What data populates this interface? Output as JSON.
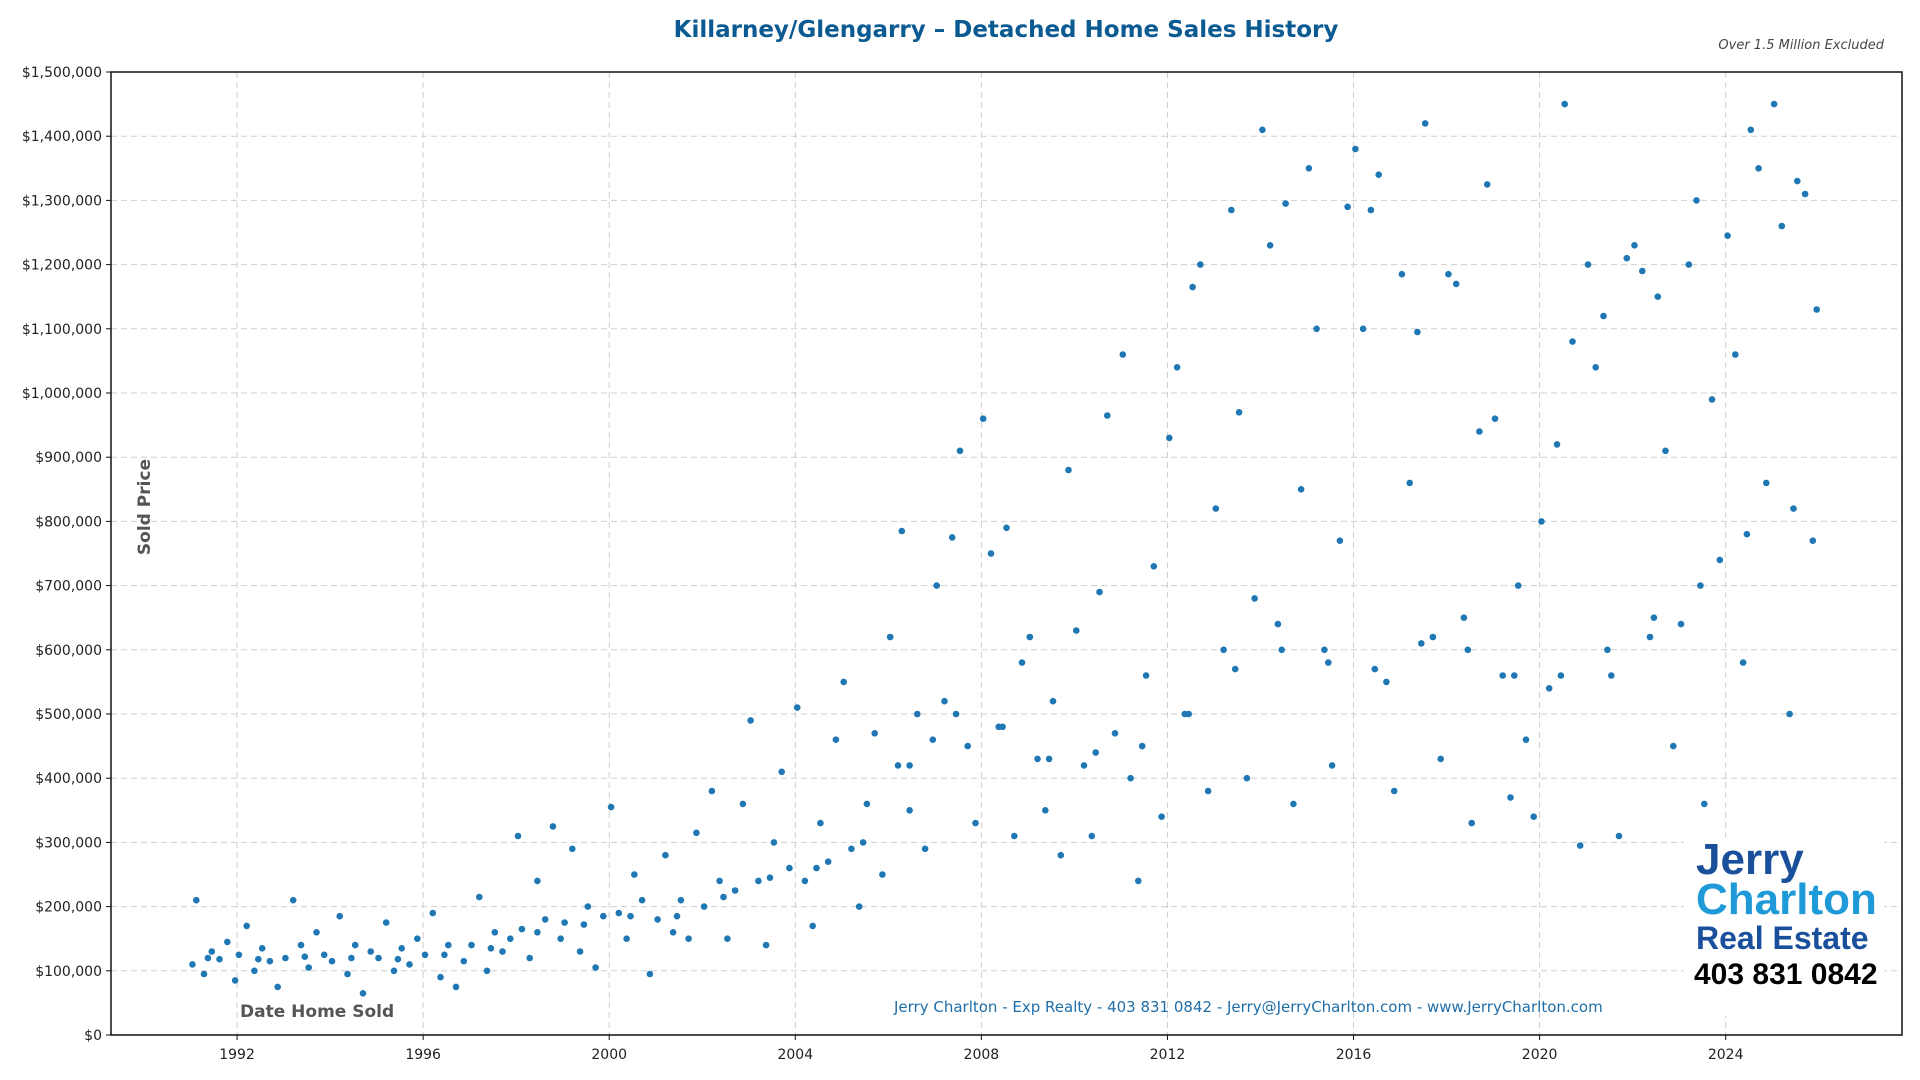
{
  "chart_data": {
    "type": "scatter",
    "title": "Killarney/Glengarry – Detached Home Sales History",
    "note": "Over 1.5 Million Excluded",
    "xlabel": "Date Home Sold",
    "ylabel": "Sold Price",
    "xlim": [
      "1989-04",
      "2027-10"
    ],
    "ylim": [
      0,
      1500000
    ],
    "x_ticks": [
      "1992",
      "1996",
      "2000",
      "2004",
      "2008",
      "2012",
      "2016",
      "2020",
      "2024"
    ],
    "y_ticks": [
      "$0",
      "$100,000",
      "$200,000",
      "$300,000",
      "$400,000",
      "$500,000",
      "$600,000",
      "$700,000",
      "$800,000",
      "$900,000",
      "$1,000,000",
      "$1,100,000",
      "$1,200,000",
      "$1,300,000",
      "$1,400,000",
      "$1,500,000"
    ],
    "grid": true,
    "point_color": "#1f77b4",
    "points": [
      [
        "1991-01",
        110000
      ],
      [
        "1991-02",
        210000
      ],
      [
        "1991-04",
        95000
      ],
      [
        "1991-06",
        130000
      ],
      [
        "1991-08",
        118000
      ],
      [
        "1991-10",
        145000
      ],
      [
        "1991-12",
        85000
      ],
      [
        "1992-01",
        125000
      ],
      [
        "1992-03",
        170000
      ],
      [
        "1992-05",
        100000
      ],
      [
        "1992-07",
        135000
      ],
      [
        "1992-09",
        115000
      ],
      [
        "1992-11",
        75000
      ],
      [
        "1993-01",
        120000
      ],
      [
        "1993-03",
        210000
      ],
      [
        "1993-05",
        140000
      ],
      [
        "1993-07",
        105000
      ],
      [
        "1993-09",
        160000
      ],
      [
        "1993-11",
        125000
      ],
      [
        "1994-01",
        115000
      ],
      [
        "1994-03",
        185000
      ],
      [
        "1994-05",
        95000
      ],
      [
        "1994-07",
        140000
      ],
      [
        "1994-09",
        65000
      ],
      [
        "1994-11",
        130000
      ],
      [
        "1995-01",
        120000
      ],
      [
        "1995-03",
        175000
      ],
      [
        "1995-05",
        100000
      ],
      [
        "1995-07",
        135000
      ],
      [
        "1995-09",
        110000
      ],
      [
        "1995-11",
        150000
      ],
      [
        "1996-01",
        125000
      ],
      [
        "1996-03",
        190000
      ],
      [
        "1996-05",
        90000
      ],
      [
        "1996-07",
        140000
      ],
      [
        "1996-09",
        75000
      ],
      [
        "1996-11",
        115000
      ],
      [
        "1997-01",
        140000
      ],
      [
        "1997-03",
        215000
      ],
      [
        "1997-05",
        100000
      ],
      [
        "1997-07",
        160000
      ],
      [
        "1997-09",
        130000
      ],
      [
        "1997-11",
        150000
      ],
      [
        "1998-01",
        310000
      ],
      [
        "1998-02",
        165000
      ],
      [
        "1998-04",
        120000
      ],
      [
        "1998-06",
        240000
      ],
      [
        "1998-08",
        180000
      ],
      [
        "1998-10",
        325000
      ],
      [
        "1998-12",
        150000
      ],
      [
        "1999-01",
        175000
      ],
      [
        "1999-03",
        290000
      ],
      [
        "1999-05",
        130000
      ],
      [
        "1999-07",
        200000
      ],
      [
        "1999-09",
        105000
      ],
      [
        "1999-11",
        185000
      ],
      [
        "2000-01",
        355000
      ],
      [
        "2000-03",
        190000
      ],
      [
        "2000-05",
        150000
      ],
      [
        "2000-07",
        250000
      ],
      [
        "2000-09",
        210000
      ],
      [
        "2000-11",
        95000
      ],
      [
        "2001-01",
        180000
      ],
      [
        "2001-03",
        280000
      ],
      [
        "2001-05",
        160000
      ],
      [
        "2001-07",
        210000
      ],
      [
        "2001-09",
        150000
      ],
      [
        "2001-11",
        315000
      ],
      [
        "2002-01",
        200000
      ],
      [
        "2002-03",
        380000
      ],
      [
        "2002-05",
        240000
      ],
      [
        "2002-07",
        150000
      ],
      [
        "2002-09",
        225000
      ],
      [
        "2002-11",
        360000
      ],
      [
        "2003-01",
        490000
      ],
      [
        "2003-03",
        240000
      ],
      [
        "2003-05",
        140000
      ],
      [
        "2003-07",
        300000
      ],
      [
        "2003-09",
        410000
      ],
      [
        "2003-11",
        260000
      ],
      [
        "2004-01",
        510000
      ],
      [
        "2004-03",
        240000
      ],
      [
        "2004-05",
        170000
      ],
      [
        "2004-07",
        330000
      ],
      [
        "2004-09",
        270000
      ],
      [
        "2004-11",
        460000
      ],
      [
        "2005-01",
        550000
      ],
      [
        "2005-03",
        290000
      ],
      [
        "2005-05",
        200000
      ],
      [
        "2005-07",
        360000
      ],
      [
        "2005-09",
        470000
      ],
      [
        "2005-11",
        250000
      ],
      [
        "2006-01",
        620000
      ],
      [
        "2006-03",
        420000
      ],
      [
        "2006-04",
        785000
      ],
      [
        "2006-06",
        350000
      ],
      [
        "2006-08",
        500000
      ],
      [
        "2006-10",
        290000
      ],
      [
        "2006-12",
        460000
      ],
      [
        "2007-01",
        700000
      ],
      [
        "2007-03",
        520000
      ],
      [
        "2007-05",
        775000
      ],
      [
        "2007-07",
        910000
      ],
      [
        "2007-09",
        450000
      ],
      [
        "2007-11",
        330000
      ],
      [
        "2008-01",
        960000
      ],
      [
        "2008-03",
        750000
      ],
      [
        "2008-05",
        480000
      ],
      [
        "2008-07",
        790000
      ],
      [
        "2008-09",
        310000
      ],
      [
        "2008-11",
        580000
      ],
      [
        "2009-01",
        620000
      ],
      [
        "2009-03",
        430000
      ],
      [
        "2009-05",
        350000
      ],
      [
        "2009-07",
        520000
      ],
      [
        "2009-09",
        280000
      ],
      [
        "2009-11",
        880000
      ],
      [
        "2010-01",
        630000
      ],
      [
        "2010-03",
        420000
      ],
      [
        "2010-05",
        310000
      ],
      [
        "2010-07",
        690000
      ],
      [
        "2010-09",
        965000
      ],
      [
        "2010-11",
        470000
      ],
      [
        "2011-01",
        1060000
      ],
      [
        "2011-03",
        400000
      ],
      [
        "2011-05",
        240000
      ],
      [
        "2011-07",
        560000
      ],
      [
        "2011-09",
        730000
      ],
      [
        "2011-11",
        340000
      ],
      [
        "2012-01",
        930000
      ],
      [
        "2012-03",
        1040000
      ],
      [
        "2012-05",
        500000
      ],
      [
        "2012-07",
        1165000
      ],
      [
        "2012-09",
        1200000
      ],
      [
        "2012-11",
        380000
      ],
      [
        "2013-01",
        820000
      ],
      [
        "2013-03",
        600000
      ],
      [
        "2013-05",
        1285000
      ],
      [
        "2013-07",
        970000
      ],
      [
        "2013-09",
        400000
      ],
      [
        "2013-11",
        680000
      ],
      [
        "2014-01",
        1410000
      ],
      [
        "2014-03",
        1230000
      ],
      [
        "2014-05",
        640000
      ],
      [
        "2014-07",
        1295000
      ],
      [
        "2014-09",
        360000
      ],
      [
        "2014-11",
        850000
      ],
      [
        "2015-01",
        1350000
      ],
      [
        "2015-03",
        1100000
      ],
      [
        "2015-05",
        600000
      ],
      [
        "2015-07",
        420000
      ],
      [
        "2015-09",
        770000
      ],
      [
        "2015-11",
        1290000
      ],
      [
        "2016-01",
        1380000
      ],
      [
        "2016-03",
        1100000
      ],
      [
        "2016-05",
        1285000
      ],
      [
        "2016-07",
        1340000
      ],
      [
        "2016-09",
        550000
      ],
      [
        "2016-11",
        380000
      ],
      [
        "2017-01",
        1185000
      ],
      [
        "2017-03",
        860000
      ],
      [
        "2017-05",
        1095000
      ],
      [
        "2017-07",
        1420000
      ],
      [
        "2017-09",
        620000
      ],
      [
        "2017-11",
        430000
      ],
      [
        "2018-01",
        1185000
      ],
      [
        "2018-03",
        1170000
      ],
      [
        "2018-05",
        650000
      ],
      [
        "2018-07",
        330000
      ],
      [
        "2018-09",
        940000
      ],
      [
        "2018-11",
        1325000
      ],
      [
        "2019-01",
        960000
      ],
      [
        "2019-03",
        560000
      ],
      [
        "2019-05",
        370000
      ],
      [
        "2019-07",
        700000
      ],
      [
        "2019-09",
        460000
      ],
      [
        "2019-11",
        340000
      ],
      [
        "2020-01",
        800000
      ],
      [
        "2020-03",
        540000
      ],
      [
        "2020-05",
        920000
      ],
      [
        "2020-07",
        1450000
      ],
      [
        "2020-09",
        1080000
      ],
      [
        "2020-11",
        295000
      ],
      [
        "2021-01",
        1200000
      ],
      [
        "2021-03",
        1040000
      ],
      [
        "2021-05",
        1120000
      ],
      [
        "2021-07",
        560000
      ],
      [
        "2021-09",
        310000
      ],
      [
        "2021-11",
        1210000
      ],
      [
        "2022-01",
        1230000
      ],
      [
        "2022-03",
        1190000
      ],
      [
        "2022-05",
        620000
      ],
      [
        "2022-07",
        1150000
      ],
      [
        "2022-09",
        910000
      ],
      [
        "2022-11",
        450000
      ],
      [
        "2023-01",
        640000
      ],
      [
        "2023-03",
        1200000
      ],
      [
        "2023-05",
        1300000
      ],
      [
        "2023-07",
        360000
      ],
      [
        "2023-09",
        990000
      ],
      [
        "2023-11",
        740000
      ],
      [
        "2024-01",
        1245000
      ],
      [
        "2024-03",
        1060000
      ],
      [
        "2024-05",
        580000
      ],
      [
        "2024-07",
        1410000
      ],
      [
        "2024-09",
        1350000
      ],
      [
        "2024-11",
        860000
      ],
      [
        "2025-01",
        1450000
      ],
      [
        "2025-03",
        1260000
      ],
      [
        "2025-05",
        500000
      ],
      [
        "2025-07",
        1330000
      ],
      [
        "2025-09",
        1310000
      ],
      [
        "2025-11",
        770000
      ],
      [
        "2025-12",
        1130000
      ],
      [
        "1991-05",
        120000
      ],
      [
        "1992-06",
        118000
      ],
      [
        "1993-06",
        122000
      ],
      [
        "1994-06",
        120000
      ],
      [
        "1995-06",
        118000
      ],
      [
        "1996-06",
        125000
      ],
      [
        "1997-06",
        135000
      ],
      [
        "1998-06",
        160000
      ],
      [
        "1999-06",
        172000
      ],
      [
        "2000-06",
        185000
      ],
      [
        "2001-06",
        185000
      ],
      [
        "2002-06",
        215000
      ],
      [
        "2003-06",
        245000
      ],
      [
        "2004-06",
        260000
      ],
      [
        "2005-06",
        300000
      ],
      [
        "2006-06",
        420000
      ],
      [
        "2007-06",
        500000
      ],
      [
        "2008-06",
        480000
      ],
      [
        "2009-06",
        430000
      ],
      [
        "2010-06",
        440000
      ],
      [
        "2011-06",
        450000
      ],
      [
        "2012-06",
        500000
      ],
      [
        "2013-06",
        570000
      ],
      [
        "2014-06",
        600000
      ],
      [
        "2015-06",
        580000
      ],
      [
        "2016-06",
        570000
      ],
      [
        "2017-06",
        610000
      ],
      [
        "2018-06",
        600000
      ],
      [
        "2019-06",
        560000
      ],
      [
        "2020-06",
        560000
      ],
      [
        "2021-06",
        600000
      ],
      [
        "2022-06",
        650000
      ],
      [
        "2023-06",
        700000
      ],
      [
        "2024-06",
        780000
      ],
      [
        "2025-06",
        820000
      ]
    ]
  },
  "footer": "Jerry Charlton - Exp Realty - 403 831 0842 - Jerry@JerryCharlton.com - www.JerryCharlton.com",
  "logo": {
    "line1": "Jerry",
    "line2": "Charlton",
    "line3": "Real Estate",
    "phone": "403 831 0842"
  }
}
